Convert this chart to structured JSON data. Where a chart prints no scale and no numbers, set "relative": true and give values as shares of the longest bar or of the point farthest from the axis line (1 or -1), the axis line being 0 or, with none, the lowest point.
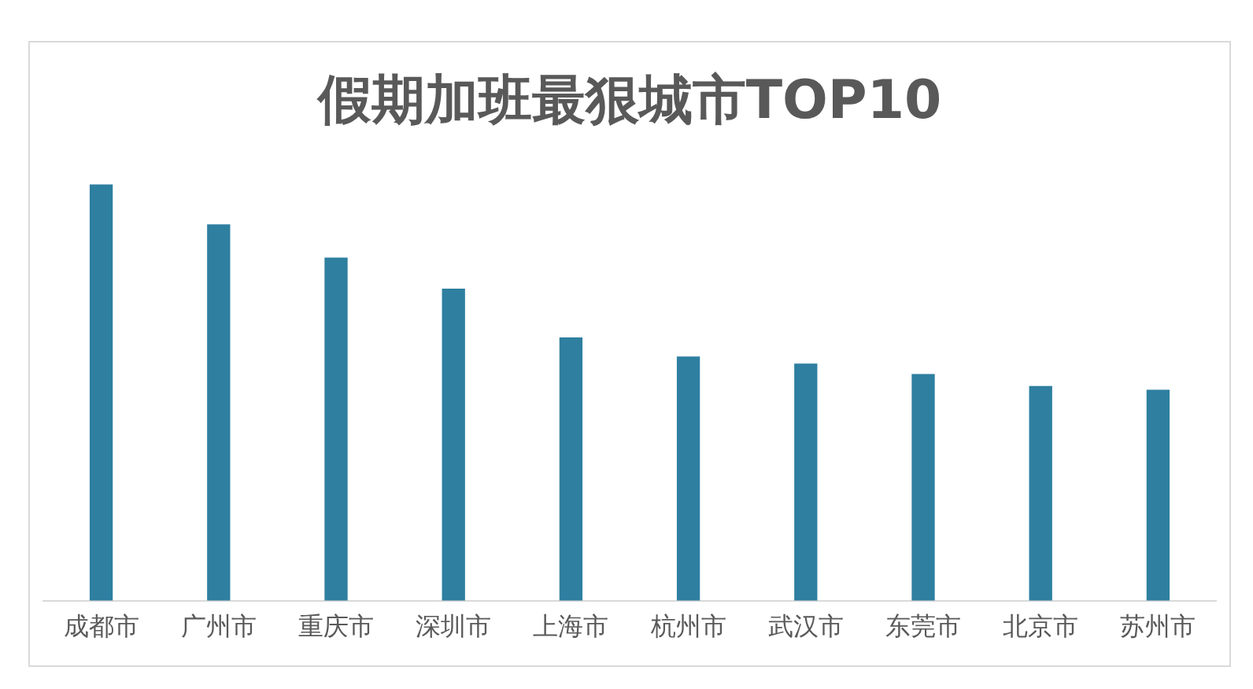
{
  "chart_data": {
    "type": "bar",
    "title": "假期加班最狠城市TOP10",
    "relative": true,
    "categories": [
      "成都市",
      "广州市",
      "重庆市",
      "深圳市",
      "上海市",
      "杭州市",
      "武汉市",
      "东莞市",
      "北京市",
      "苏州市"
    ],
    "values": [
      1,
      0.904,
      0.824,
      0.749,
      0.632,
      0.586,
      0.569,
      0.544,
      0.515,
      0.506
    ],
    "color": "#2e7fa0",
    "grid": false,
    "legend": false
  }
}
